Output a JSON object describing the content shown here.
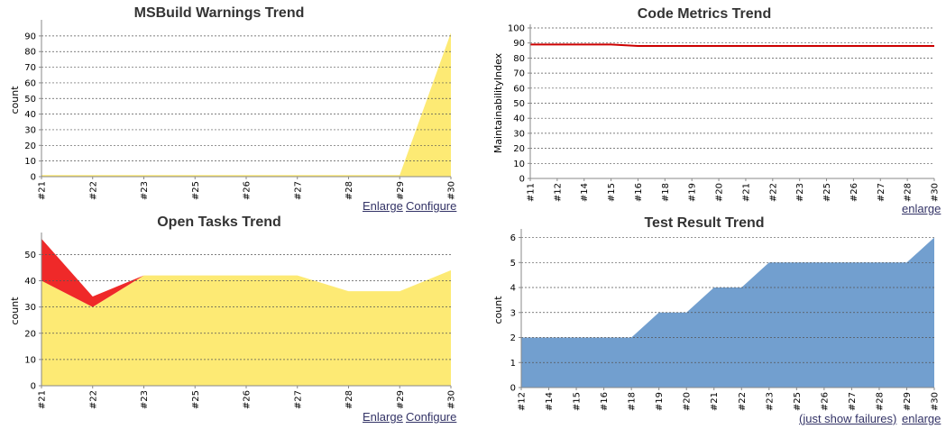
{
  "chart_data": [
    {
      "id": "msbuild",
      "type": "area",
      "title": "MSBuild Warnings Trend",
      "xlabel": "",
      "ylabel": "count",
      "categories": [
        "#21",
        "#22",
        "#23",
        "#25",
        "#26",
        "#27",
        "#28",
        "#29",
        "#30"
      ],
      "ylim": [
        0,
        98
      ],
      "yticks": [
        0,
        10,
        20,
        30,
        40,
        50,
        60,
        70,
        80,
        90
      ],
      "grid": true,
      "stacked": true,
      "series": [
        {
          "color": "#3a9a3a",
          "values": [
            0,
            0,
            0,
            0,
            0,
            0,
            0,
            0,
            0
          ]
        },
        {
          "color": "#fdea74",
          "values": [
            1,
            1,
            1,
            1,
            1,
            1,
            1,
            1,
            92
          ]
        }
      ],
      "links": [
        "Enlarge",
        "Configure"
      ]
    },
    {
      "id": "codemetrics",
      "type": "line",
      "title": "Code Metrics Trend",
      "xlabel": "",
      "ylabel": "MaintainabilityIndex",
      "categories": [
        "#11",
        "#12",
        "#14",
        "#15",
        "#16",
        "#18",
        "#19",
        "#20",
        "#21",
        "#22",
        "#23",
        "#25",
        "#26",
        "#27",
        "#28",
        "#30"
      ],
      "ylim": [
        0,
        100
      ],
      "yticks": [
        0,
        10,
        20,
        30,
        40,
        50,
        60,
        70,
        80,
        90,
        100
      ],
      "grid": true,
      "series": [
        {
          "color": "#cc0000",
          "values": [
            89,
            89,
            89,
            89,
            88,
            88,
            88,
            88,
            88,
            88,
            88,
            88,
            88,
            88,
            88,
            88
          ]
        }
      ],
      "links": [
        "enlarge"
      ]
    },
    {
      "id": "opentasks",
      "type": "area",
      "title": "Open Tasks Trend",
      "xlabel": "",
      "ylabel": "count",
      "categories": [
        "#21",
        "#22",
        "#23",
        "#25",
        "#26",
        "#27",
        "#28",
        "#29",
        "#30"
      ],
      "ylim": [
        0,
        57
      ],
      "yticks": [
        0,
        10,
        20,
        30,
        40,
        50
      ],
      "grid": true,
      "stacked": true,
      "series": [
        {
          "color": "#fdea74",
          "values": [
            40,
            30,
            42,
            42,
            42,
            42,
            36,
            36,
            44
          ]
        },
        {
          "color": "#ef2929",
          "values": [
            16,
            4,
            0,
            0,
            0,
            0,
            0,
            0,
            0
          ]
        }
      ],
      "links": [
        "Enlarge",
        "Configure"
      ]
    },
    {
      "id": "testresult",
      "type": "area",
      "title": "Test Result Trend",
      "xlabel": "",
      "ylabel": "count",
      "categories": [
        "#12",
        "#14",
        "#15",
        "#16",
        "#18",
        "#19",
        "#20",
        "#21",
        "#22",
        "#23",
        "#25",
        "#26",
        "#27",
        "#28",
        "#29",
        "#30"
      ],
      "ylim": [
        0,
        6.2
      ],
      "yticks": [
        0,
        1,
        2,
        3,
        4,
        5,
        6
      ],
      "grid": true,
      "stacked": true,
      "series": [
        {
          "color": "#729fcf",
          "values": [
            2,
            2,
            2,
            2,
            2,
            3,
            3,
            4,
            4,
            5,
            5,
            5,
            5,
            5,
            5,
            6
          ]
        }
      ],
      "links": [
        "(just show failures)",
        "enlarge"
      ]
    }
  ]
}
